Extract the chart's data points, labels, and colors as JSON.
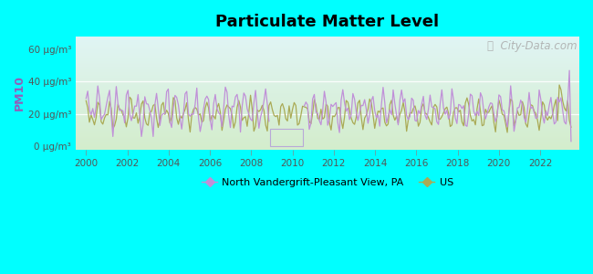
{
  "title": "Particulate Matter Level",
  "ylabel": "PM10",
  "background_color": "#00FFFF",
  "plot_bg_top": "#e0f4f4",
  "plot_bg_bottom": "#d4edcc",
  "ytick_labels": [
    "0 μg/m³",
    "20 μg/m³",
    "40 μg/m³",
    "60 μg/m³"
  ],
  "ytick_values": [
    0,
    20,
    40,
    60
  ],
  "ylim": [
    -2,
    68
  ],
  "xlim": [
    1999.5,
    2023.9
  ],
  "xtick_values": [
    2000,
    2002,
    2004,
    2006,
    2008,
    2010,
    2012,
    2014,
    2016,
    2018,
    2020,
    2022
  ],
  "line1_color": "#c090d8",
  "line2_color": "#aaaa55",
  "legend_label1": "North Vandergrift-Pleasant View, PA",
  "legend_label2": "US",
  "watermark_color": "#aaaaaa",
  "gap_box_color": "#b8a8d8",
  "gap_start": 2008.9,
  "gap_end": 2010.5
}
